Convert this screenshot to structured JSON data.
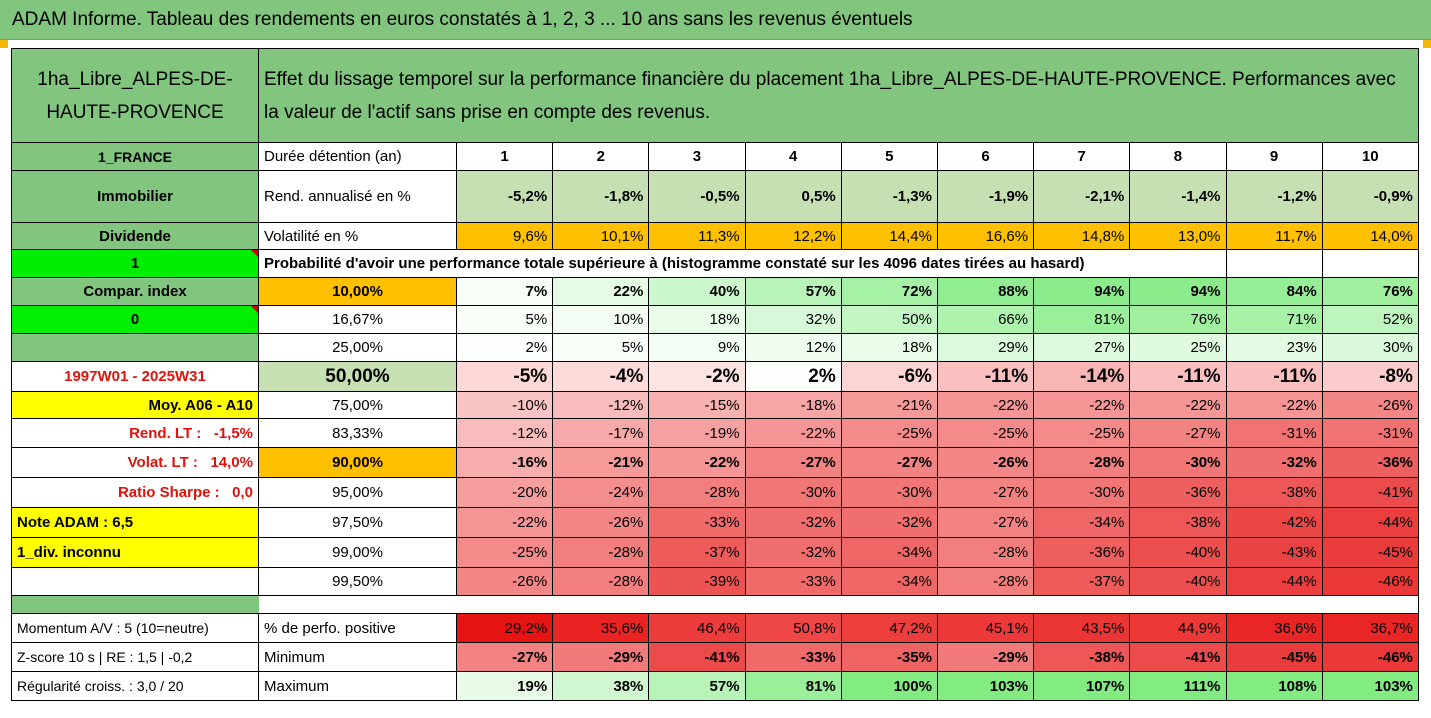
{
  "title": "ADAM Informe. Tableau des rendements en euros constatés à 1, 2, 3 ... 10 ans sans les revenus éventuels",
  "header": {
    "asset": "1ha_Libre_ALPES-DE-HAUTE-PROVENCE",
    "description": "Effet du lissage temporel sur la performance financière du placement 1ha_Libre_ALPES-DE-HAUTE-PROVENCE. Performances avec la valeur de l'actif sans prise en compte des revenus."
  },
  "left": {
    "country": "1_FRANCE",
    "category": "Immobilier",
    "dividende_label": "Dividende",
    "dividende_value": "1",
    "compar_label": "Compar. index",
    "compar_value": "0",
    "period": "1997W01 - 2025W31",
    "moy": "Moy. A06 - A10",
    "rend_lt_label": "Rend. LT :",
    "rend_lt_value": "-1,5%",
    "volat_lt_label": "Volat. LT :",
    "volat_lt_value": "14,0%",
    "sharpe_label": "Ratio Sharpe :",
    "sharpe_value": "0,0",
    "note": "Note ADAM : 6,5",
    "div": "1_div. inconnu",
    "momentum": "Momentum A/V : 5 (10=neutre)",
    "zscore": "Z-score 10 s | RE : 1,5 | -0,2",
    "regularite": "Régularité croiss. : 3,0 / 20"
  },
  "labels": {
    "duree": "Durée détention (an)",
    "rend": "Rend. annualisé en %",
    "vol": "Volatilité en %",
    "proba": "Probabilité d'avoir une performance totale supérieure à (histogramme constaté sur les 4096 dates tirées au hasard)",
    "perf_pos": "% de perfo. positive",
    "min": "Minimum",
    "max": "Maximum"
  },
  "years": [
    "1",
    "2",
    "3",
    "4",
    "5",
    "6",
    "7",
    "8",
    "9",
    "10"
  ],
  "rend": [
    "-5,2%",
    "-1,8%",
    "-0,5%",
    "0,5%",
    "-1,3%",
    "-1,9%",
    "-2,1%",
    "-1,4%",
    "-1,2%",
    "-0,9%"
  ],
  "vol": [
    "9,6%",
    "10,1%",
    "11,3%",
    "12,2%",
    "14,4%",
    "16,6%",
    "14,8%",
    "13,0%",
    "11,7%",
    "14,0%"
  ],
  "quantiles": [
    {
      "label": "10,00%",
      "values": [
        "7%",
        "22%",
        "40%",
        "57%",
        "72%",
        "88%",
        "94%",
        "94%",
        "84%",
        "76%"
      ]
    },
    {
      "label": "16,67%",
      "values": [
        "5%",
        "10%",
        "18%",
        "32%",
        "50%",
        "66%",
        "81%",
        "76%",
        "71%",
        "52%"
      ]
    },
    {
      "label": "25,00%",
      "values": [
        "2%",
        "5%",
        "9%",
        "12%",
        "18%",
        "29%",
        "27%",
        "25%",
        "23%",
        "30%"
      ]
    },
    {
      "label": "50,00%",
      "values": [
        "-5%",
        "-4%",
        "-2%",
        "2%",
        "-6%",
        "-11%",
        "-14%",
        "-11%",
        "-11%",
        "-8%"
      ]
    },
    {
      "label": "75,00%",
      "values": [
        "-10%",
        "-12%",
        "-15%",
        "-18%",
        "-21%",
        "-22%",
        "-22%",
        "-22%",
        "-22%",
        "-26%"
      ]
    },
    {
      "label": "83,33%",
      "values": [
        "-12%",
        "-17%",
        "-19%",
        "-22%",
        "-25%",
        "-25%",
        "-25%",
        "-27%",
        "-31%",
        "-31%"
      ]
    },
    {
      "label": "90,00%",
      "values": [
        "-16%",
        "-21%",
        "-22%",
        "-27%",
        "-27%",
        "-26%",
        "-28%",
        "-30%",
        "-32%",
        "-36%"
      ]
    },
    {
      "label": "95,00%",
      "values": [
        "-20%",
        "-24%",
        "-28%",
        "-30%",
        "-30%",
        "-27%",
        "-30%",
        "-36%",
        "-38%",
        "-41%"
      ]
    },
    {
      "label": "97,50%",
      "values": [
        "-22%",
        "-26%",
        "-33%",
        "-32%",
        "-32%",
        "-27%",
        "-34%",
        "-38%",
        "-42%",
        "-44%"
      ]
    },
    {
      "label": "99,00%",
      "values": [
        "-25%",
        "-28%",
        "-37%",
        "-32%",
        "-34%",
        "-28%",
        "-36%",
        "-40%",
        "-43%",
        "-45%"
      ]
    },
    {
      "label": "99,50%",
      "values": [
        "-26%",
        "-28%",
        "-39%",
        "-33%",
        "-34%",
        "-28%",
        "-37%",
        "-40%",
        "-44%",
        "-46%"
      ]
    }
  ],
  "perf_pos": [
    "29,2%",
    "35,6%",
    "46,4%",
    "50,8%",
    "47,2%",
    "45,1%",
    "43,5%",
    "44,9%",
    "36,6%",
    "36,7%"
  ],
  "min": [
    "-27%",
    "-29%",
    "-41%",
    "-33%",
    "-35%",
    "-29%",
    "-38%",
    "-41%",
    "-45%",
    "-46%"
  ],
  "max": [
    "19%",
    "38%",
    "57%",
    "81%",
    "100%",
    "103%",
    "107%",
    "111%",
    "108%",
    "103%"
  ],
  "colors": {
    "green": "#82c57f",
    "light_green": "#c6e0b4",
    "yellow": "#ffff00",
    "orange": "#ffc000",
    "bright_green": "#00ee00",
    "red_text": "#e0120a"
  }
}
